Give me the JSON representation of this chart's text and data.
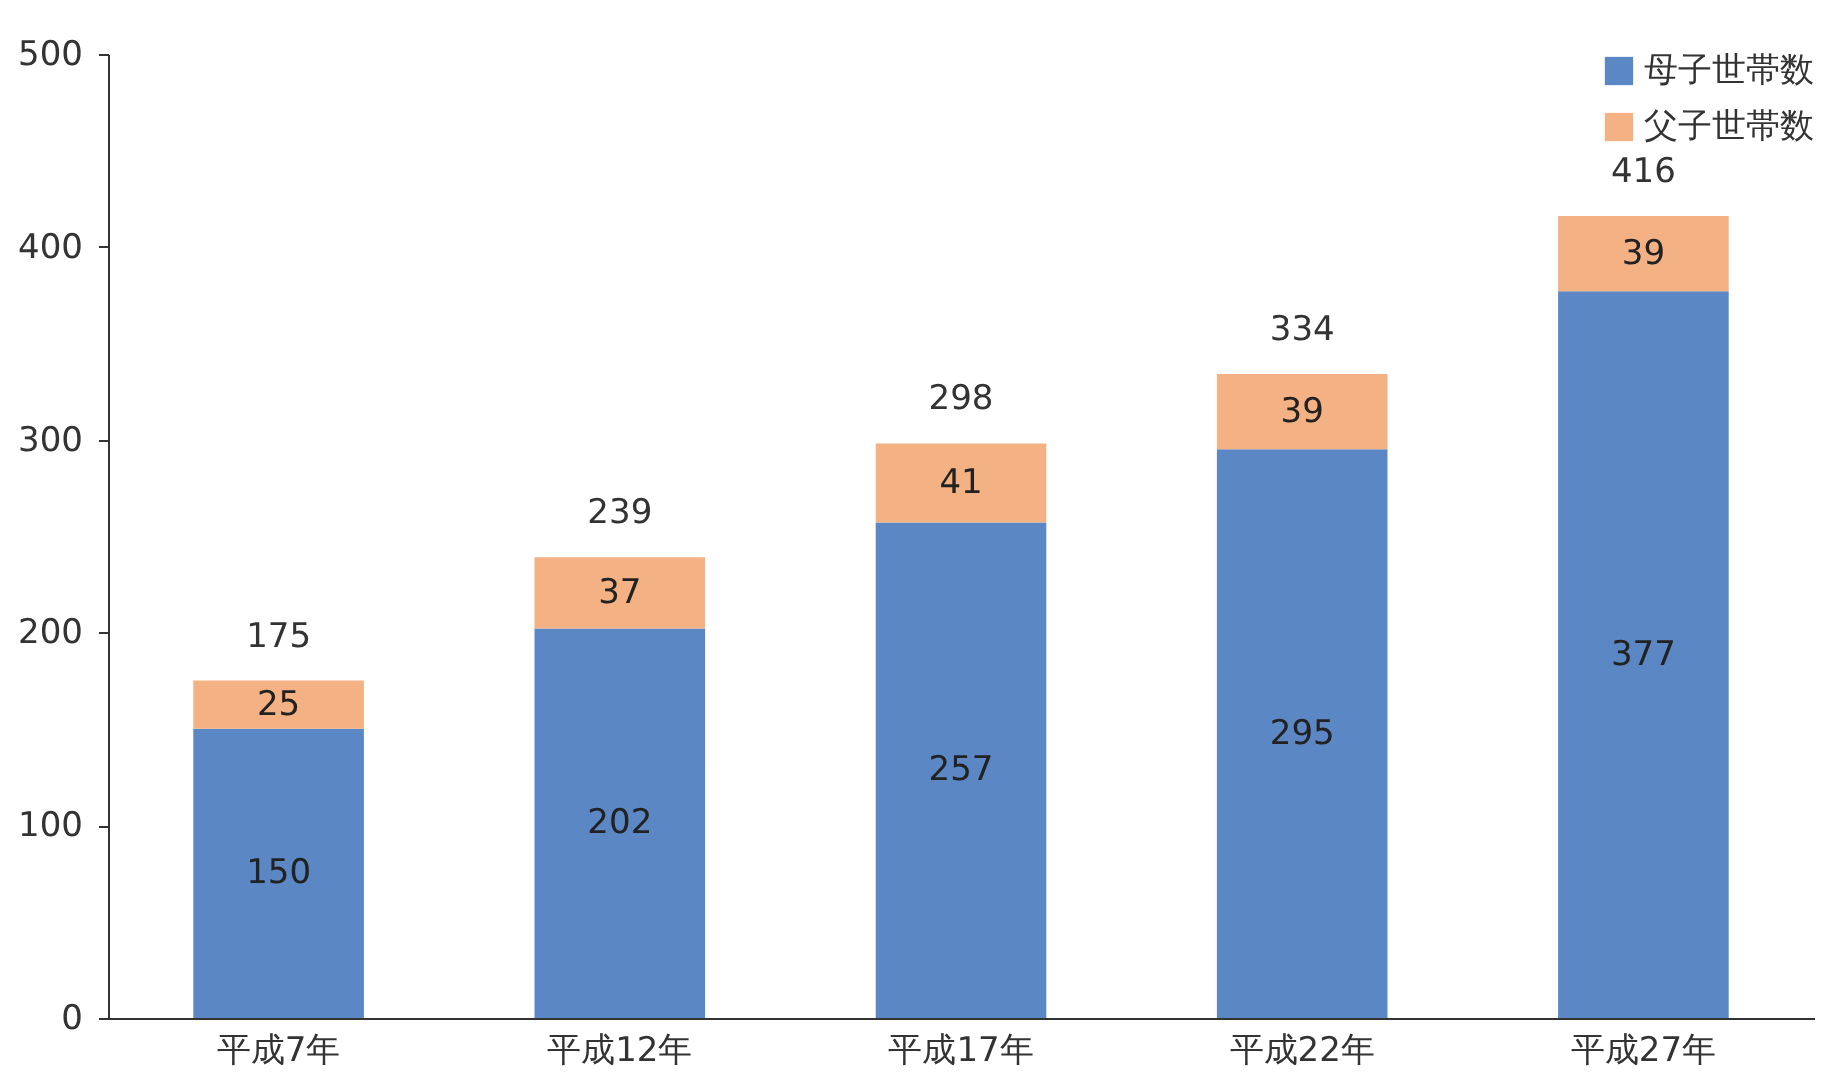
{
  "chart_data": {
    "type": "bar",
    "stacked": true,
    "categories": [
      "平成7年",
      "平成12年",
      "平成17年",
      "平成22年",
      "平成27年"
    ],
    "series": [
      {
        "name": "母子世帯数",
        "color": "#5b87c5",
        "values": [
          150,
          202,
          257,
          295,
          377
        ]
      },
      {
        "name": "父子世帯数",
        "color": "#f4b183",
        "values": [
          25,
          37,
          41,
          39,
          39
        ]
      }
    ],
    "totals": [
      "175",
      "239",
      "298",
      "334",
      "416"
    ],
    "ylim": [
      0,
      500
    ],
    "yticks": [
      0,
      100,
      200,
      300,
      400,
      500
    ],
    "data_labels": true,
    "legend": "top right",
    "grid": false
  }
}
